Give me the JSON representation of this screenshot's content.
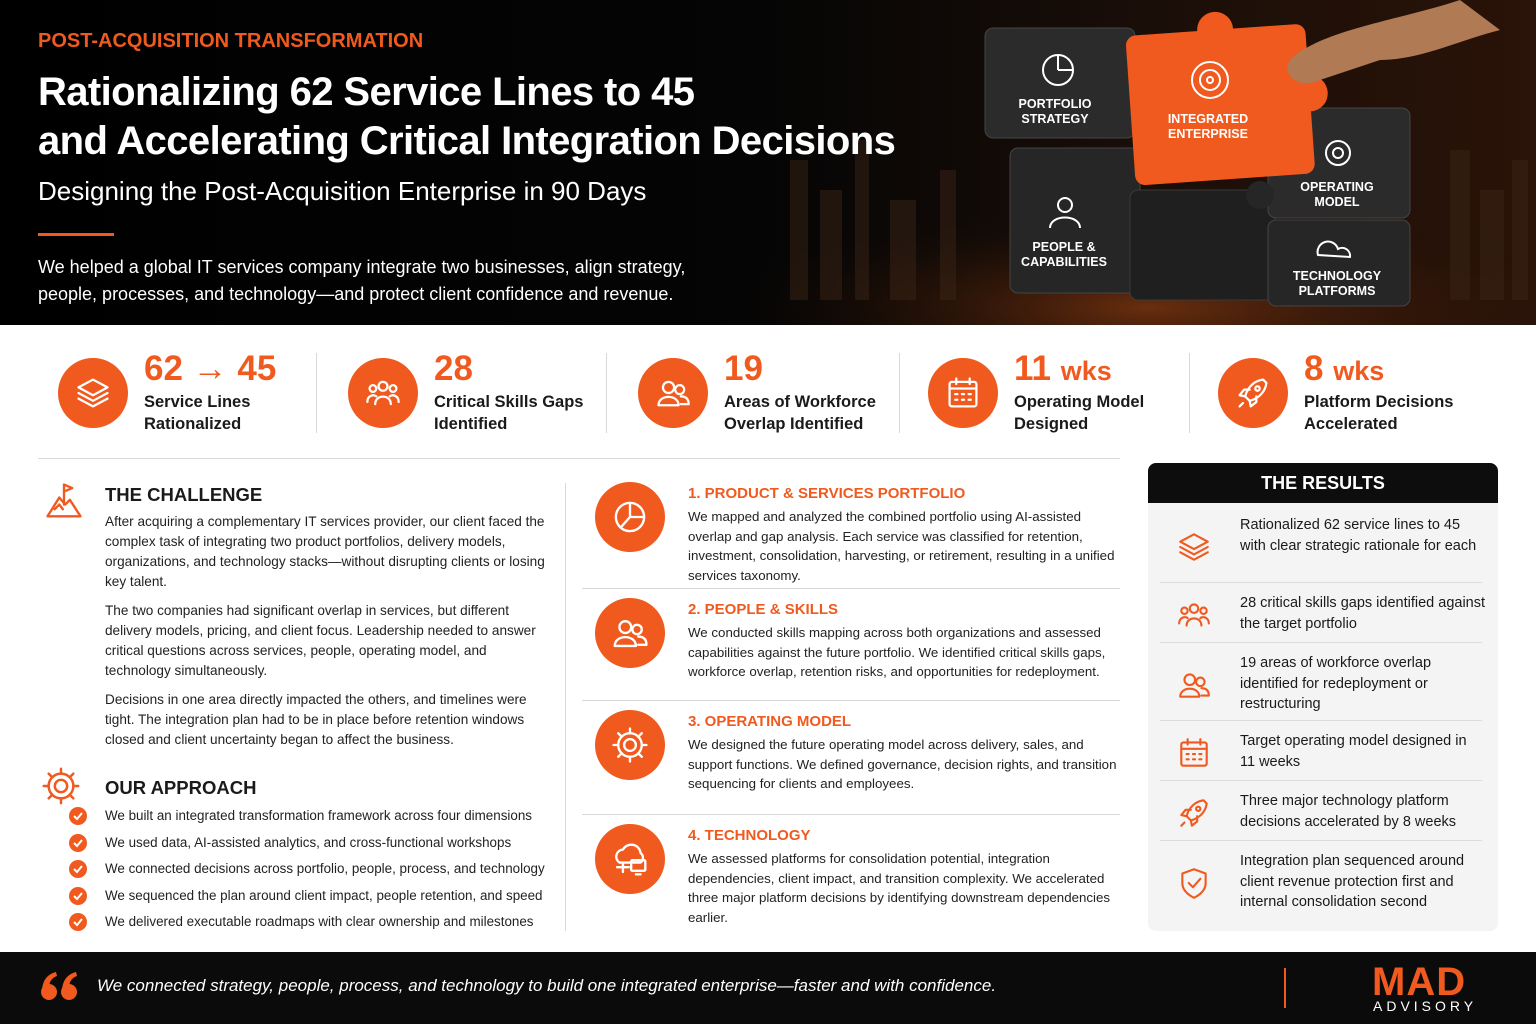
{
  "header": {
    "eyebrow": "POST-ACQUISITION TRANSFORMATION",
    "title_lines": [
      "Rationalizing 62 Service Lines to 45",
      "and Accelerating Critical Integration Decisions"
    ],
    "subtitle": "Designing the Post-Acquisition Enterprise in 90 Days",
    "intro_lines": [
      "We helped a global IT services company integrate two businesses, align strategy,",
      "people, processes, and technology—and protect client confidence and revenue."
    ]
  },
  "puzzle": {
    "pieces": [
      {
        "lines": [
          "PORTFOLIO",
          "STRATEGY"
        ]
      },
      {
        "lines": [
          "INTEGRATED",
          "ENTERPRISE"
        ]
      },
      {
        "lines": [
          "OPERATING",
          "MODEL"
        ]
      },
      {
        "lines": [
          "PEOPLE &",
          "CAPABILITIES"
        ]
      },
      {
        "lines": [
          "TECHNOLOGY",
          "PLATFORMS"
        ]
      }
    ]
  },
  "stats": [
    {
      "value": "62 → 45",
      "label_lines": [
        "Service Lines",
        "Rationalized"
      ]
    },
    {
      "value": "28",
      "label_lines": [
        "Critical Skills Gaps",
        "Identified"
      ]
    },
    {
      "value": "19",
      "label_lines": [
        "Areas of Workforce",
        "Overlap Identified"
      ]
    },
    {
      "value": "11",
      "unit": "wks",
      "label_lines": [
        "Operating Model",
        "Designed"
      ]
    },
    {
      "value": "8",
      "unit": "wks",
      "label_lines": [
        "Platform Decisions",
        "Accelerated"
      ]
    }
  ],
  "challenge": {
    "title": "THE CHALLENGE",
    "paragraphs": [
      "After acquiring a complementary IT services provider, our client faced the complex task of integrating two product portfolios, delivery models, organizations, and technology stacks—without disrupting clients or losing key talent.",
      "The two companies had significant overlap in services, but different delivery models, pricing, and client focus. Leadership needed to answer critical questions across services, people, operating model, and technology simultaneously.",
      "Decisions in one area directly impacted the others, and timelines were tight. The integration plan had to be in place before retention windows closed and client uncertainty began to affect the business."
    ]
  },
  "approach": {
    "title": "OUR APPROACH",
    "items": [
      "We built an integrated transformation framework across four dimensions",
      "We used data, AI-assisted analytics, and cross-functional workshops",
      "We connected decisions across portfolio, people, process, and technology",
      "We sequenced the plan around client impact, people retention, and speed",
      "We delivered executable roadmaps with clear ownership and milestones"
    ]
  },
  "workstreams": [
    {
      "title": "1. PRODUCT & SERVICES PORTFOLIO",
      "text": "We mapped and analyzed the combined portfolio using AI-assisted overlap and gap analysis. Each service was classified for retention, investment, consolidation, harvesting, or retirement, resulting in a unified services taxonomy."
    },
    {
      "title": "2. PEOPLE & SKILLS",
      "text": "We conducted skills mapping across both organizations and assessed capabilities against the future portfolio. We identified critical skills gaps, workforce overlap, retention risks, and opportunities for redeployment."
    },
    {
      "title": "3. OPERATING MODEL",
      "text": "We designed the future operating model across delivery, sales, and support functions. We defined governance, decision rights, and transition sequencing for clients and employees."
    },
    {
      "title": "4. TECHNOLOGY",
      "text": "We assessed platforms for consolidation potential, integration dependencies, client impact, and transition complexity. We accelerated three major platform decisions by identifying downstream dependencies earlier."
    }
  ],
  "results": {
    "title": "THE RESULTS",
    "items": [
      "Rationalized 62 service lines to 45 with clear strategic rationale for each",
      "28 critical skills gaps identified against the target portfolio",
      "19 areas of workforce overlap identified for redeployment or restructuring",
      "Target operating model designed in 11 weeks",
      "Three major technology platform decisions accelerated by 8 weeks",
      "Integration plan sequenced around client revenue protection first and internal consolidation second"
    ]
  },
  "footer": {
    "quote": "We connected strategy, people, process, and technology to build one integrated enterprise—faster and with confidence.",
    "brand": "MAD",
    "brand_sub": "ADVISORY"
  }
}
